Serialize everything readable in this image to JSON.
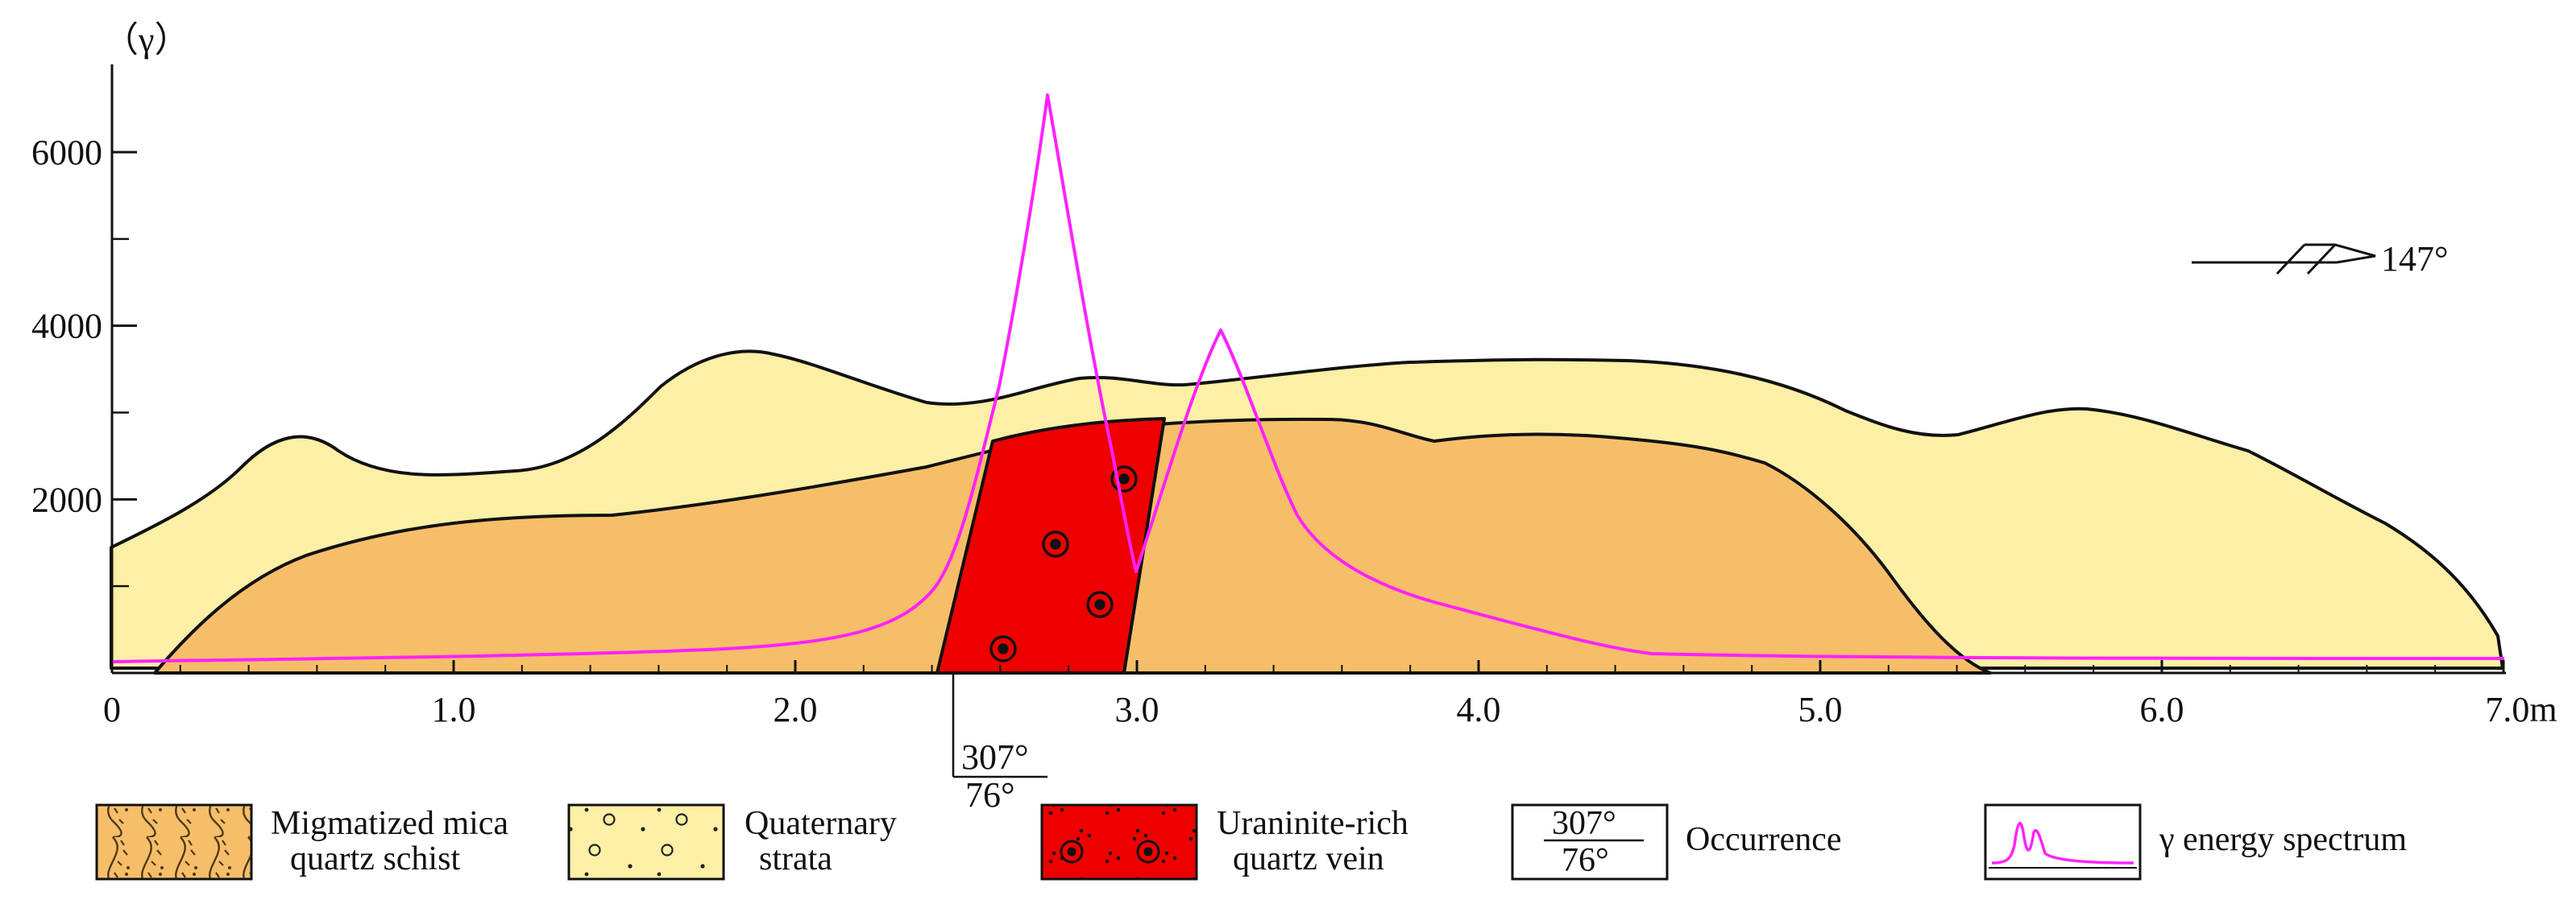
{
  "figure": {
    "y_axis": {
      "unit_label": "（γ）",
      "ticks": [
        {
          "value": 2000,
          "label": "2000"
        },
        {
          "value": 4000,
          "label": "4000"
        },
        {
          "value": 6000,
          "label": "6000"
        }
      ]
    },
    "x_axis": {
      "ticks": [
        {
          "value": 0,
          "label": "0"
        },
        {
          "value": 1,
          "label": "1.0"
        },
        {
          "value": 2,
          "label": "2.0"
        },
        {
          "value": 3,
          "label": "3.0"
        },
        {
          "value": 4,
          "label": "4.0"
        },
        {
          "value": 5,
          "label": "5.0"
        },
        {
          "value": 6,
          "label": "6.0"
        },
        {
          "value": 7,
          "label": "7.0m"
        }
      ]
    },
    "strike_symbol": {
      "label": "147°"
    },
    "vein_occurrence": {
      "dip_direction": "307°",
      "dip_angle": "76°"
    }
  },
  "legend": {
    "items": [
      {
        "key": "schist",
        "line1": "Migmatized mica",
        "line2": "quartz schist"
      },
      {
        "key": "quaternary",
        "line1": "Quaternary",
        "line2": "strata"
      },
      {
        "key": "vein",
        "line1": "Uraninite-rich",
        "line2": "quartz vein"
      },
      {
        "key": "occurrence",
        "symbol_top": "307°",
        "symbol_bottom": "76°",
        "label": "Occurrence"
      },
      {
        "key": "spectrum",
        "label": "γ energy spectrum"
      }
    ]
  },
  "colors": {
    "quaternary": "#fcefa6",
    "schist": "#f7be6a",
    "vein": "#ee0000",
    "spectrum": "#ff22ff",
    "outline": "#111111"
  }
}
